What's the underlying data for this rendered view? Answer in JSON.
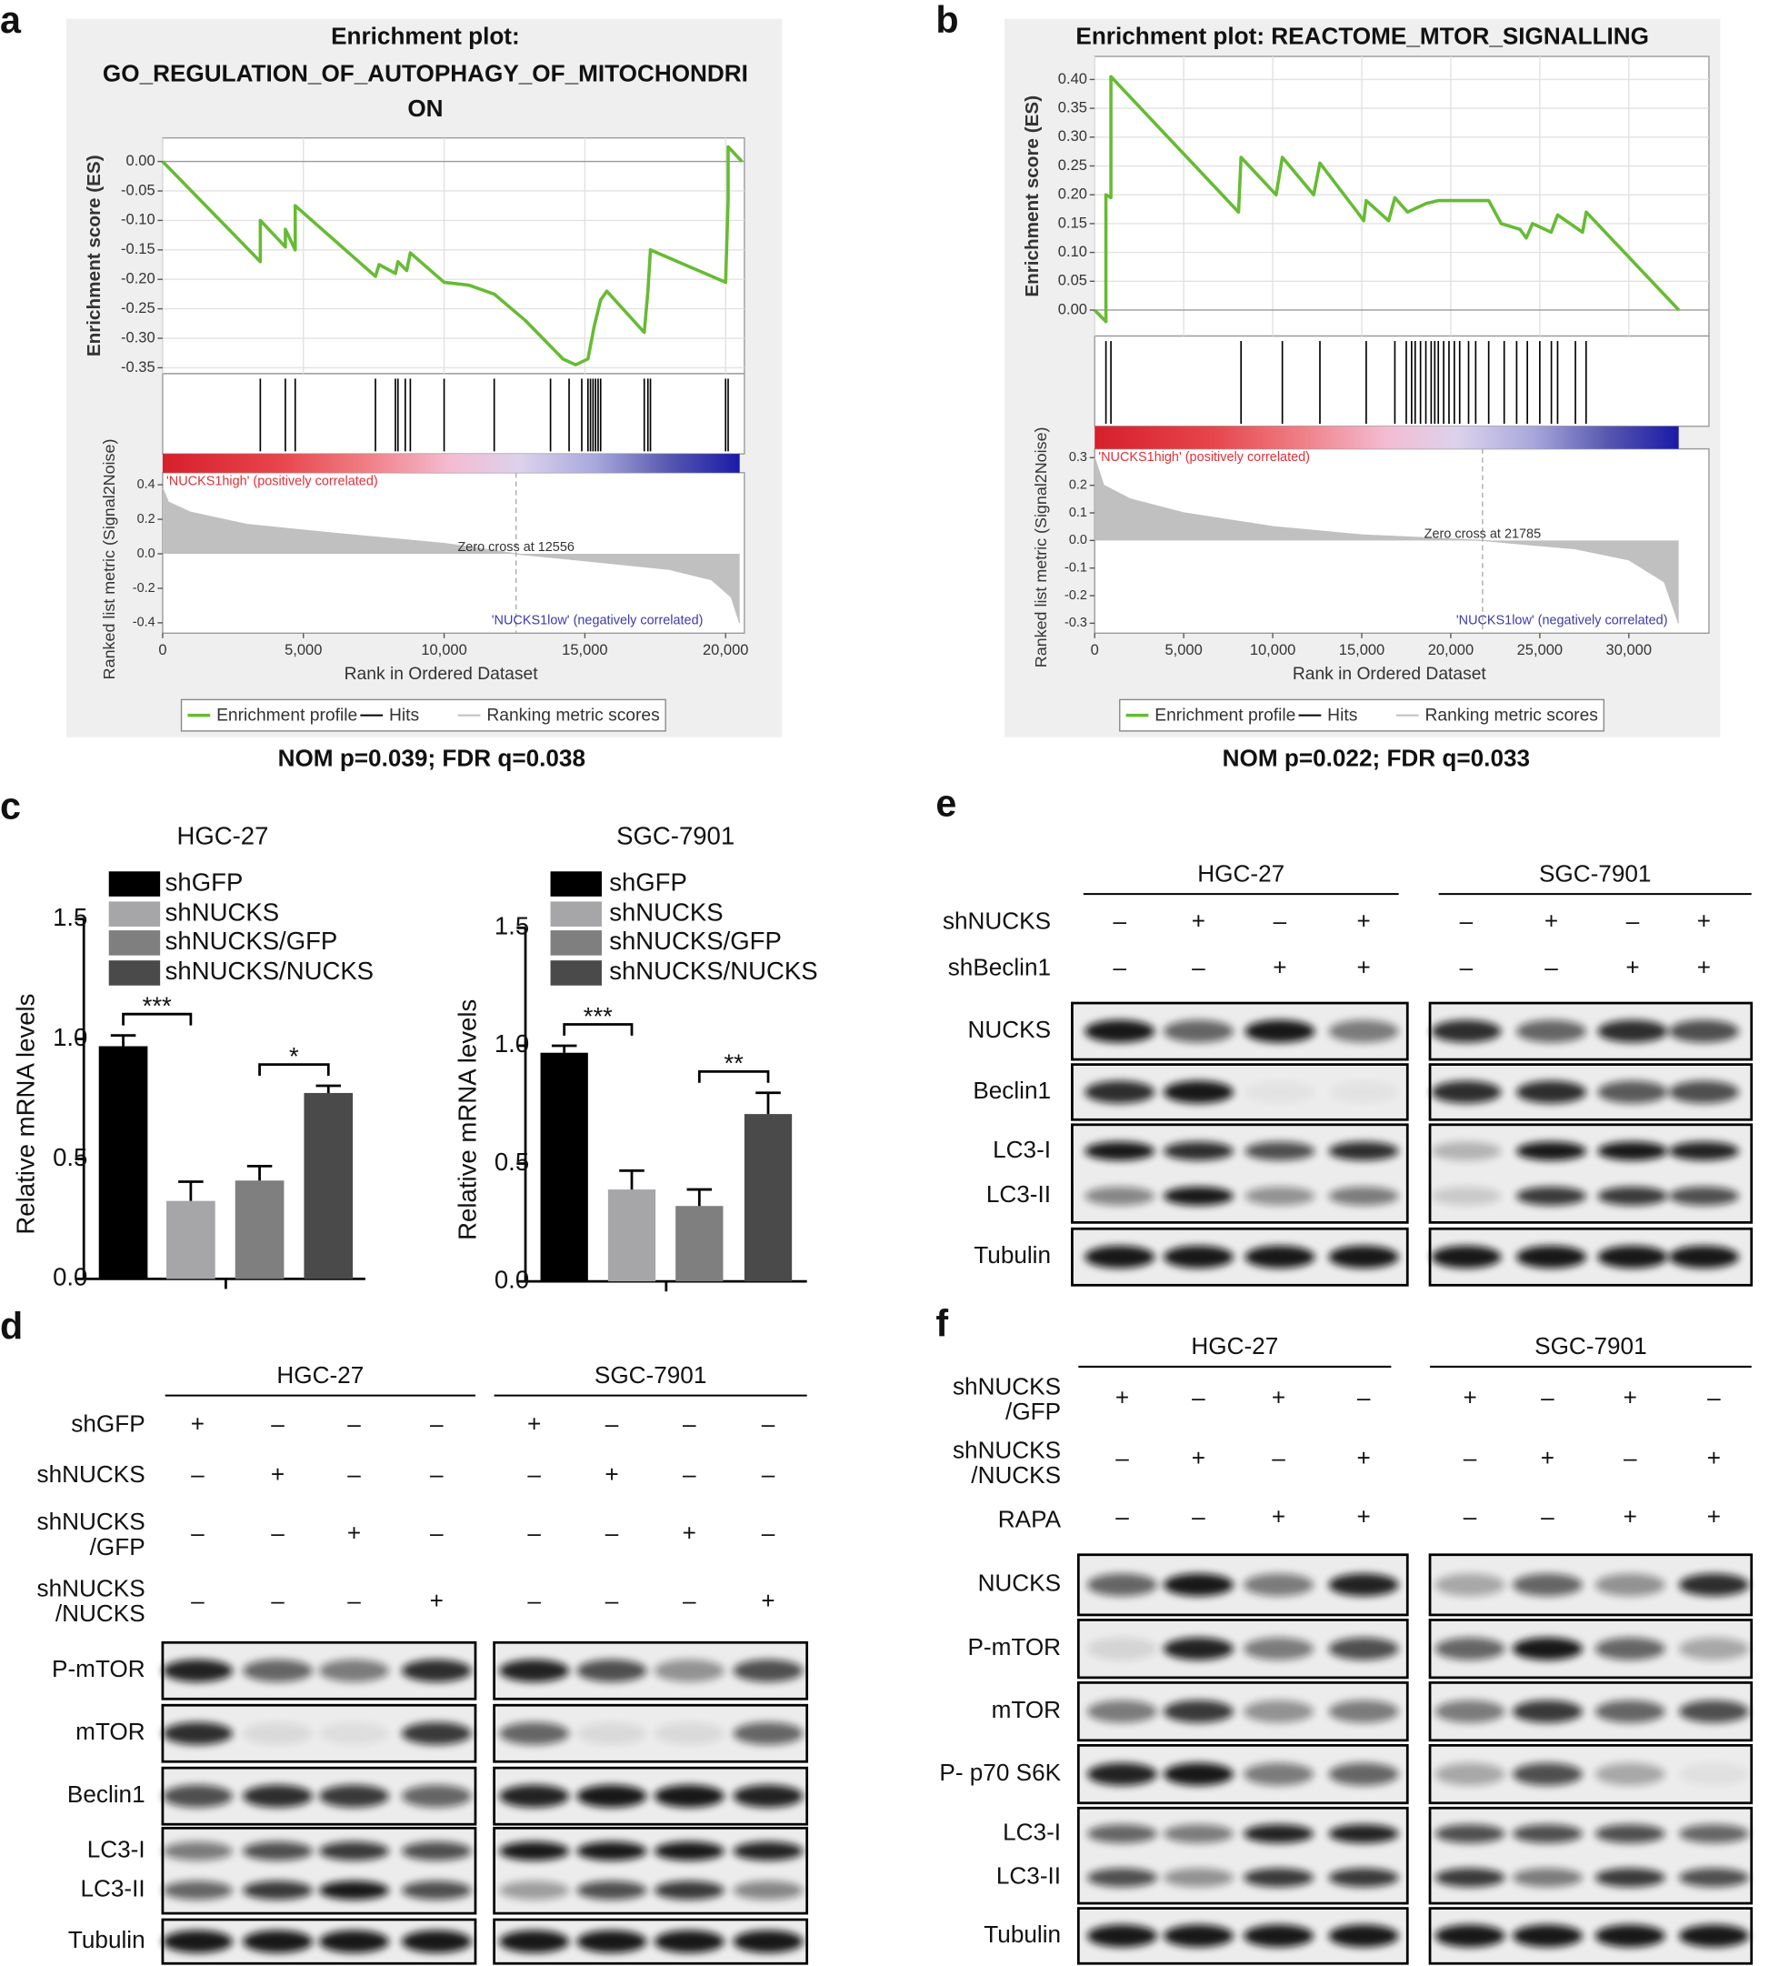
{
  "panel_labels": [
    "a",
    "b",
    "c",
    "d",
    "e",
    "f"
  ],
  "chart_data": [
    {
      "type": "gsea",
      "title": [
        "Enrichment plot:",
        "GO_REGULATION_OF_AUTOPHAGY_OF_MITOCHONDRI",
        "ON"
      ],
      "ylabel": "Enrichment score (ES)",
      "y2label": "Ranked list metric (Signal2Noise)",
      "xlabel": "Rank in Ordered Dataset",
      "xlim": [
        0,
        20667
      ],
      "xticks": [
        0,
        {
          "value": 5000,
          "label": "5,000"
        },
        {
          "value": 10000,
          "label": "10,000"
        },
        {
          "value": 15000,
          "label": "15,000"
        },
        {
          "value": 20000,
          "label": "20,000"
        }
      ],
      "ylim": [
        -0.36,
        0.04
      ],
      "yticks": [
        {
          "value": 0,
          "label": "0.00"
        },
        -0.05,
        {
          "value": -0.1,
          "label": "-0.10"
        },
        -0.15,
        {
          "value": -0.2,
          "label": "-0.20"
        },
        -0.25,
        {
          "value": -0.3,
          "label": "-0.30"
        },
        -0.35
      ],
      "y2lim": [
        -0.46,
        0.47
      ],
      "y2ticks": [
        0.4,
        0.2,
        {
          "value": 0,
          "label": "0.0"
        },
        -0.2,
        -0.4
      ],
      "grid": true,
      "series": [
        {
          "name": "Enrichment profile",
          "color": "#66bb33",
          "x": [
            0,
            3470,
            3470,
            4360,
            4360,
            4710,
            4710,
            7560,
            7690,
            8270,
            8360,
            8670,
            8800,
            10000,
            10890,
            11780,
            12890,
            14220,
            14670,
            15110,
            15330,
            15560,
            15780,
            17110,
            17240,
            17330,
            20000,
            20090,
            20090,
            20580
          ],
          "values": [
            0,
            -0.17,
            -0.1,
            -0.145,
            -0.115,
            -0.15,
            -0.075,
            -0.195,
            -0.175,
            -0.19,
            -0.17,
            -0.185,
            -0.155,
            -0.205,
            -0.21,
            -0.225,
            -0.27,
            -0.335,
            -0.345,
            -0.335,
            -0.28,
            -0.235,
            -0.22,
            -0.29,
            -0.22,
            -0.15,
            -0.205,
            -0.065,
            0.025,
            0
          ]
        },
        {
          "name": "Hits",
          "color": "#000000",
          "x": [
            3470,
            4360,
            4710,
            7560,
            8270,
            8360,
            8620,
            8800,
            10000,
            11780,
            13780,
            14440,
            14890,
            15110,
            15200,
            15290,
            15380,
            15470,
            15560,
            17110,
            17240,
            17330,
            20000,
            20090
          ]
        },
        {
          "name": "Ranking metric scores",
          "color": "#c0c0c0",
          "axis": "y2",
          "x": [
            0,
            200,
            1000,
            3000,
            6000,
            10000,
            12556,
            15000,
            18000,
            19500,
            20200,
            20500
          ],
          "values": [
            0.38,
            0.3,
            0.24,
            0.17,
            0.12,
            0.06,
            0,
            -0.04,
            -0.09,
            -0.15,
            -0.25,
            -0.4
          ]
        }
      ],
      "zero_cross": {
        "value": 12556,
        "label": "Zero cross at 12556"
      },
      "high_label": "'NUCKS1high' (positively correlated)",
      "low_label": "'NUCKS1low' (negatively correlated)",
      "footer": "NOM p=0.039; FDR q=0.038"
    },
    {
      "type": "gsea",
      "title": [
        "Enrichment plot: REACTOME_MTOR_SIGNALLING"
      ],
      "ylabel": "Enrichment score (ES)",
      "y2label": "Ranked list metric (Signal2Noise)",
      "xlabel": "Rank in Ordered Dataset",
      "xlim": [
        0,
        34500
      ],
      "xticks": [
        0,
        {
          "value": 5000,
          "label": "5,000"
        },
        {
          "value": 10000,
          "label": "10,000"
        },
        {
          "value": 15000,
          "label": "15,000"
        },
        {
          "value": 20000,
          "label": "20,000"
        },
        {
          "value": 25000,
          "label": "25,000"
        },
        {
          "value": 30000,
          "label": "30,000"
        }
      ],
      "ylim": [
        -0.045,
        0.44
      ],
      "yticks": [
        {
          "value": 0,
          "label": "0.00"
        },
        0.05,
        {
          "value": 0.1,
          "label": "0.10"
        },
        0.15,
        {
          "value": 0.2,
          "label": "0.20"
        },
        0.25,
        {
          "value": 0.3,
          "label": "0.30"
        },
        0.35,
        {
          "value": 0.4,
          "label": "0.40"
        }
      ],
      "y2lim": [
        -0.336,
        0.332
      ],
      "y2ticks": [
        0.3,
        0.2,
        0.1,
        {
          "value": 0,
          "label": "0.0"
        },
        -0.1,
        -0.2,
        -0.3
      ],
      "grid": true,
      "series": [
        {
          "name": "Enrichment profile",
          "color": "#66bb33",
          "x": [
            0,
            632,
            632,
            913,
            913,
            8080,
            8220,
            10190,
            10540,
            12300,
            12650,
            14750,
            15110,
            15250,
            16510,
            16860,
            17570,
            18620,
            19320,
            22130,
            22830,
            23890,
            24240,
            24590,
            25640,
            26000,
            27400,
            27610,
            32810
          ],
          "values": [
            0,
            -0.02,
            0.2,
            0.195,
            0.405,
            0.17,
            0.265,
            0.2,
            0.265,
            0.2,
            0.255,
            0.17,
            0.155,
            0.19,
            0.155,
            0.195,
            0.17,
            0.185,
            0.19,
            0.19,
            0.15,
            0.14,
            0.125,
            0.15,
            0.135,
            0.165,
            0.135,
            0.17,
            0
          ]
        },
        {
          "name": "Hits",
          "color": "#000000",
          "x": [
            632,
            913,
            8220,
            10540,
            12650,
            15250,
            16860,
            17500,
            17800,
            18000,
            18300,
            18600,
            18900,
            19100,
            19300,
            19600,
            19900,
            20200,
            20500,
            21000,
            21400,
            22130,
            23000,
            23700,
            24300,
            25000,
            25650,
            26000,
            27000,
            27600
          ]
        },
        {
          "name": "Ranking metric scores",
          "color": "#c0c0c0",
          "axis": "y2",
          "x": [
            0,
            500,
            2000,
            5000,
            10000,
            15000,
            21785,
            27000,
            30000,
            32000,
            32800
          ],
          "values": [
            0.3,
            0.2,
            0.15,
            0.1,
            0.05,
            0.02,
            0,
            -0.03,
            -0.07,
            -0.15,
            -0.3
          ]
        }
      ],
      "zero_cross": {
        "value": 21785,
        "label": "Zero cross at 21785"
      },
      "high_label": "'NUCKS1high' (positively correlated)",
      "low_label": "'NUCKS1low' (negatively correlated)",
      "footer": "NOM p=0.022; FDR q=0.033"
    },
    {
      "type": "bar",
      "title": "HGC-27",
      "ylabel": "Relative mRNA levels",
      "ylim": [
        0,
        1.5
      ],
      "yticks": [
        {
          "value": 0,
          "label": "0.0"
        },
        0.5,
        {
          "value": 1,
          "label": "1.0"
        },
        1.5
      ],
      "categories": [
        "shGFP",
        "shNUCKS",
        "shNUCKS/GFP",
        "shNUCKS/NUCKS"
      ],
      "colors": [
        "#000000",
        "#a6a6a9",
        "#7f7f7f",
        "#4a4a4a"
      ],
      "values": [
        0.97,
        0.325,
        0.41,
        0.775
      ],
      "errors": [
        0.045,
        0.08,
        0.06,
        0.03
      ],
      "comparisons": [
        {
          "label": "***",
          "pair": [
            "shGFP",
            "shNUCKS"
          ]
        },
        {
          "label": "*",
          "pair": [
            "shNUCKS/GFP",
            "shNUCKS/NUCKS"
          ]
        }
      ]
    },
    {
      "type": "bar",
      "title": "SGC-7901",
      "ylabel": "Relative mRNA levels",
      "ylim": [
        0,
        1.5
      ],
      "yticks": [
        {
          "value": 0,
          "label": "0.0"
        },
        0.5,
        {
          "value": 1,
          "label": "1.0"
        },
        1.5
      ],
      "categories": [
        "shGFP",
        "shNUCKS",
        "shNUCKS/GFP",
        "shNUCKS/NUCKS"
      ],
      "colors": [
        "#000000",
        "#a6a6a9",
        "#7f7f7f",
        "#4a4a4a"
      ],
      "values": [
        0.97,
        0.39,
        0.32,
        0.71
      ],
      "errors": [
        0.03,
        0.08,
        0.07,
        0.09
      ],
      "comparisons": [
        {
          "label": "***",
          "pair": [
            "shGFP",
            "shNUCKS"
          ]
        },
        {
          "label": "**",
          "pair": [
            "shNUCKS/GFP",
            "shNUCKS/NUCKS"
          ]
        }
      ]
    }
  ],
  "blots": [
    {
      "groups": [
        "HGC-27",
        "SGC-7901"
      ],
      "conditions": [
        {
          "name": [
            "shGFP"
          ],
          "signs": [
            "+",
            "–",
            "–",
            "–",
            "+",
            "–",
            "–",
            "–"
          ]
        },
        {
          "name": [
            "shNUCKS"
          ],
          "signs": [
            "–",
            "+",
            "–",
            "–",
            "–",
            "+",
            "–",
            "–"
          ]
        },
        {
          "name": [
            "shNUCKS",
            "/GFP"
          ],
          "signs": [
            "–",
            "–",
            "+",
            "–",
            "–",
            "–",
            "+",
            "–"
          ]
        },
        {
          "name": [
            "shNUCKS",
            "/NUCKS"
          ],
          "signs": [
            "–",
            "–",
            "–",
            "+",
            "–",
            "–",
            "–",
            "+"
          ]
        }
      ],
      "rows": [
        [
          "P-mTOR"
        ],
        [
          "mTOR"
        ],
        [
          "Beclin1"
        ],
        [
          "LC3-I",
          "LC3-II"
        ],
        [
          "Tubulin"
        ]
      ]
    },
    {
      "groups": [
        "HGC-27",
        "SGC-7901"
      ],
      "conditions": [
        {
          "name": [
            "shNUCKS"
          ],
          "signs": [
            "–",
            "+",
            "–",
            "+",
            "–",
            "+",
            "–",
            "+"
          ]
        },
        {
          "name": [
            "shBeclin1"
          ],
          "signs": [
            "–",
            "–",
            "+",
            "+",
            "–",
            "–",
            "+",
            "+"
          ]
        }
      ],
      "rows": [
        [
          "NUCKS"
        ],
        [
          "Beclin1"
        ],
        [
          "LC3-I",
          "LC3-II"
        ],
        [
          "Tubulin"
        ]
      ]
    },
    {
      "groups": [
        "HGC-27",
        "SGC-7901"
      ],
      "conditions": [
        {
          "name": [
            "shNUCKS",
            "/GFP"
          ],
          "signs": [
            "+",
            "–",
            "+",
            "–",
            "+",
            "–",
            "+",
            "–"
          ]
        },
        {
          "name": [
            "shNUCKS",
            "/NUCKS"
          ],
          "signs": [
            "–",
            "+",
            "–",
            "+",
            "–",
            "+",
            "–",
            "+"
          ]
        },
        {
          "name": [
            "RAPA"
          ],
          "signs": [
            "–",
            "–",
            "+",
            "+",
            "–",
            "–",
            "+",
            "+"
          ]
        }
      ],
      "rows": [
        [
          "NUCKS"
        ],
        [
          "P-mTOR"
        ],
        [
          "mTOR"
        ],
        [
          "P- p70 S6K"
        ],
        [
          "LC3-I",
          "LC3-II"
        ],
        [
          "Tubulin"
        ]
      ]
    }
  ]
}
